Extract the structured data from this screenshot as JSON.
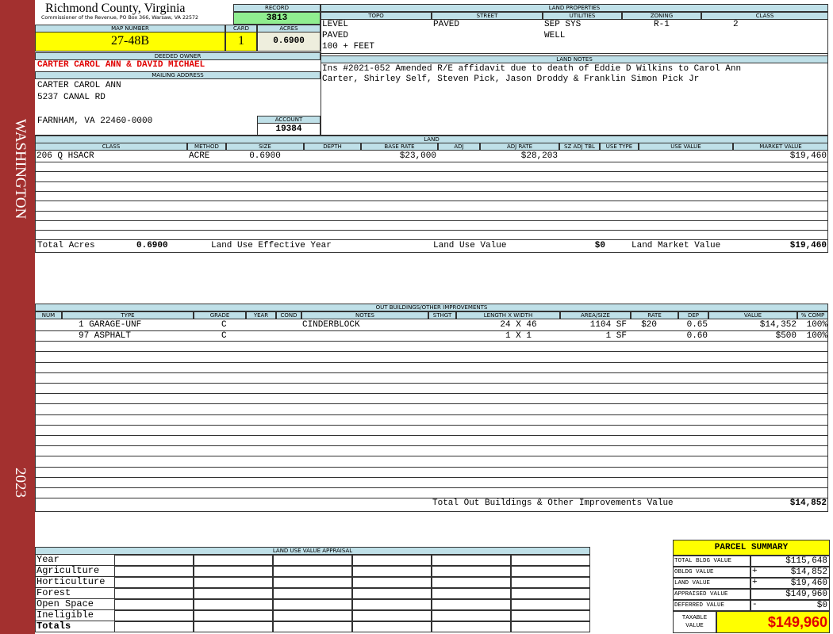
{
  "header": {
    "county": "Richmond County, Virginia",
    "commissioner": "Commissioner of the Revenue, PO Box 366, Warsaw, VA 22572"
  },
  "sidebar": {
    "district": "WASHINGTON",
    "year": "2023"
  },
  "record": {
    "label": "RECORD",
    "value": "3813"
  },
  "map_number": {
    "label": "MAP NUMBER",
    "value": "27-48B"
  },
  "card": {
    "label": "CARD",
    "value": "1"
  },
  "acres": {
    "label": "ACRES",
    "value": "0.6900"
  },
  "deeded_owner": {
    "label": "DEEDED OWNER",
    "value": "CARTER CAROL ANN & DAVID MICHAEL"
  },
  "mailing_address": {
    "label": "MAILING ADDRESS",
    "lines": [
      "CARTER CAROL ANN",
      "5237 CANAL RD",
      "FARNHAM, VA 22460-0000"
    ]
  },
  "account": {
    "label": "ACCOUNT",
    "value": "19384"
  },
  "land_properties": {
    "title": "LAND PROPERTIES",
    "headers": [
      "TOPO",
      "STREET",
      "UTILITIES",
      "ZONING",
      "CLASS"
    ],
    "columns": [
      [
        "LEVEL",
        "PAVED",
        "100 + FEET"
      ],
      [
        "PAVED"
      ],
      [
        "SEP SYS",
        "WELL"
      ],
      [
        "R-1"
      ],
      [
        "2"
      ]
    ]
  },
  "land_notes": {
    "title": "LAND NOTES",
    "text": "Ins #2021-052 Amended R/E affidavit due to death of Eddie D Wilkins to Carol Ann Carter, Shirley Self, Steven Pick, Jason Droddy & Franklin Simon Pick Jr"
  },
  "land": {
    "title": "LAND",
    "headers": [
      "CLASS",
      "METHOD",
      "SIZE",
      "DEPTH",
      "BASE RATE",
      "ADJ",
      "ADJ RATE",
      "SZ ADJ TBL",
      "USE TYPE",
      "USE VALUE",
      "MARKET VALUE"
    ],
    "rows": [
      {
        "class": "206 Q HSACR",
        "method": "ACRE",
        "size": "0.6900",
        "base_rate": "$23,000",
        "adj_rate": "$28,203",
        "market_value": "$19,460"
      }
    ],
    "totals": {
      "total_acres_label": "Total Acres",
      "total_acres": "0.6900",
      "effective_year_label": "Land Use Effective Year",
      "use_value_label": "Land Use Value",
      "use_value": "$0",
      "market_value_label": "Land Market Value",
      "market_value": "$19,460"
    }
  },
  "outbuildings": {
    "title": "OUT BUILDINGS/OTHER IMPROVEMENTS",
    "headers": [
      "NUM",
      "TYPE",
      "GRADE",
      "YEAR",
      "COND",
      "NOTES",
      "STHGT",
      "LENGTH X WIDTH",
      "AREA/SIZE",
      "RATE",
      "DEP",
      "VALUE",
      "% COMP"
    ],
    "rows": [
      {
        "type": "1 GARAGE-UNF",
        "grade": "C",
        "notes": "CINDERBLOCK",
        "dims": "24 X 46",
        "area": "1104 SF",
        "rate": "$20",
        "dep": "0.65",
        "value": "$14,352",
        "comp": "100%"
      },
      {
        "type": "97 ASPHALT",
        "grade": "C",
        "dims": "1 X 1",
        "area": "1 SF",
        "dep": "0.60",
        "value": "$500",
        "comp": "100%"
      }
    ],
    "total_label": "Total Out Buildings & Other Improvements Value",
    "total": "$14,852"
  },
  "land_use": {
    "title": "LAND USE VALUE APPRAISAL",
    "rows": [
      "Year",
      "Agriculture",
      "Horticulture",
      "Forest",
      "Open Space",
      "Ineligible",
      "Totals"
    ]
  },
  "parcel_summary": {
    "title": "PARCEL SUMMARY",
    "rows": [
      {
        "label": "TOTAL BLDG VALUE",
        "value": "$115,648"
      },
      {
        "label": "OBLDG VALUE",
        "sign": "+",
        "value": "$14,852"
      },
      {
        "label": "LAND VALUE",
        "sign": "+",
        "value": "$19,460"
      },
      {
        "label": "APPRAISED VALUE",
        "value": "$149,960"
      },
      {
        "label": "DEFERRED VALUE",
        "sign": "-",
        "value": "$0"
      }
    ],
    "taxable_label": "TAXABLE VALUE",
    "taxable": "$149,960"
  }
}
